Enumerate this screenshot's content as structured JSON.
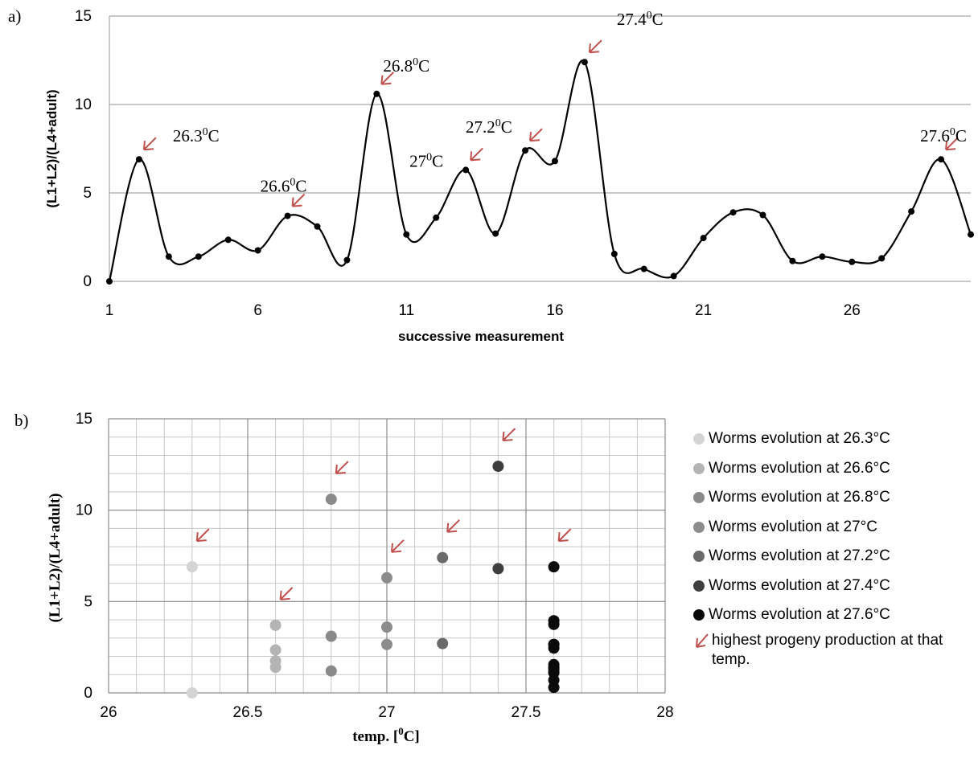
{
  "panel_a": {
    "label": "a)",
    "annotations": [
      {
        "x": 2,
        "y": 6.9,
        "text": "26.3",
        "unit": "C"
      },
      {
        "x": 7,
        "y": 3.7,
        "text": "26.6",
        "unit": "C"
      },
      {
        "x": 10,
        "y": 10.6,
        "text": "26.8",
        "unit": "C"
      },
      {
        "x": 13,
        "y": 6.3,
        "text": "27",
        "unit": "C"
      },
      {
        "x": 15,
        "y": 7.4,
        "text": "27.2",
        "unit": "C"
      },
      {
        "x": 17,
        "y": 12.4,
        "text": "27.4",
        "unit": "C"
      },
      {
        "x": 29,
        "y": 6.9,
        "text": "27.6",
        "unit": "C"
      }
    ]
  },
  "panel_b": {
    "label": "b)",
    "xlabel_prefix": "temp. [",
    "xlabel_sup": "0",
    "xlabel_suffix": "C]",
    "legend": [
      {
        "text": "Worms evolution at 26.3°C",
        "color": "#d4d4d4"
      },
      {
        "text": "Worms evolution at 26.6°C",
        "color": "#b4b4b4"
      },
      {
        "text": "Worms evolution at 26.8°C",
        "color": "#8a8a8a"
      },
      {
        "text": "Worms evolution at 27°C",
        "color": "#8c8c8c"
      },
      {
        "text": "Worms evolution at 27.2°C",
        "color": "#6a6a6a"
      },
      {
        "text": "Worms evolution at 27.4°C",
        "color": "#3e3e3e"
      },
      {
        "text": "Worms evolution at 27.6°C",
        "color": "#0a0a0a"
      }
    ],
    "legend_note": "highest  progeny production at that temp."
  },
  "colors": {
    "arrow": "#c0504d",
    "line": "#000000",
    "grid": "#a6a6a6"
  },
  "chart_data": [
    {
      "type": "line",
      "xlabel": "successive measurement",
      "ylabel": "(L1+L2)/(L4+adult)",
      "xlim": [
        1,
        30
      ],
      "ylim": [
        0,
        15
      ],
      "xticks": [
        1,
        6,
        11,
        16,
        21,
        26
      ],
      "yticks": [
        0,
        5,
        10,
        15
      ],
      "grid": true,
      "x": [
        1,
        2,
        3,
        4,
        5,
        6,
        7,
        8,
        9,
        10,
        11,
        12,
        13,
        14,
        15,
        16,
        17,
        18,
        19,
        20,
        21,
        22,
        23,
        24,
        25,
        26,
        27,
        28,
        29,
        30
      ],
      "y": [
        0,
        6.9,
        1.4,
        1.4,
        2.35,
        1.75,
        3.7,
        3.1,
        1.2,
        10.6,
        2.65,
        3.6,
        6.3,
        2.7,
        7.4,
        6.8,
        12.4,
        1.55,
        0.7,
        0.3,
        2.45,
        3.9,
        3.75,
        1.15,
        1.4,
        1.1,
        1.3,
        3.95,
        6.9,
        2.65
      ]
    },
    {
      "type": "scatter",
      "xlabel": "temp. [0C]",
      "ylabel": "(L1+L2)/(L4+adult)",
      "xlim": [
        26,
        28
      ],
      "ylim": [
        0,
        15
      ],
      "xticks": [
        26,
        26.5,
        27,
        27.5,
        28
      ],
      "yticks": [
        0,
        5,
        10,
        15
      ],
      "grid": true,
      "legend_position": "right",
      "series": [
        {
          "name": "Worms evolution at 26.3°C",
          "x": [
            26.3,
            26.3
          ],
          "y": [
            6.9,
            0
          ]
        },
        {
          "name": "Worms evolution at 26.6°C",
          "x": [
            26.6,
            26.6,
            26.6,
            26.6
          ],
          "y": [
            3.7,
            2.35,
            1.75,
            1.4
          ]
        },
        {
          "name": "Worms evolution at 26.8°C",
          "x": [
            26.8,
            26.8,
            26.8
          ],
          "y": [
            10.6,
            3.1,
            1.2
          ]
        },
        {
          "name": "Worms evolution at 27°C",
          "x": [
            27,
            27,
            27
          ],
          "y": [
            6.3,
            3.6,
            2.65
          ]
        },
        {
          "name": "Worms evolution at 27.2°C",
          "x": [
            27.2,
            27.2
          ],
          "y": [
            7.4,
            2.7
          ]
        },
        {
          "name": "Worms evolution at 27.4°C",
          "x": [
            27.4,
            27.4
          ],
          "y": [
            12.4,
            6.8
          ]
        },
        {
          "name": "Worms evolution at 27.6°C",
          "x": [
            27.6,
            27.6,
            27.6,
            27.6,
            27.6,
            27.6,
            27.6,
            27.6,
            27.6,
            27.6,
            27.6,
            27.6,
            27.6
          ],
          "y": [
            6.9,
            3.95,
            3.75,
            2.65,
            2.45,
            1.55,
            1.4,
            1.3,
            1.15,
            1.1,
            0.7,
            0.3,
            2.65
          ]
        }
      ],
      "highlight_points": [
        {
          "x": 26.3,
          "y": 6.9
        },
        {
          "x": 26.6,
          "y": 3.7
        },
        {
          "x": 26.8,
          "y": 10.6
        },
        {
          "x": 27,
          "y": 6.3
        },
        {
          "x": 27.2,
          "y": 7.4
        },
        {
          "x": 27.4,
          "y": 12.4
        },
        {
          "x": 27.6,
          "y": 6.9
        }
      ]
    }
  ]
}
